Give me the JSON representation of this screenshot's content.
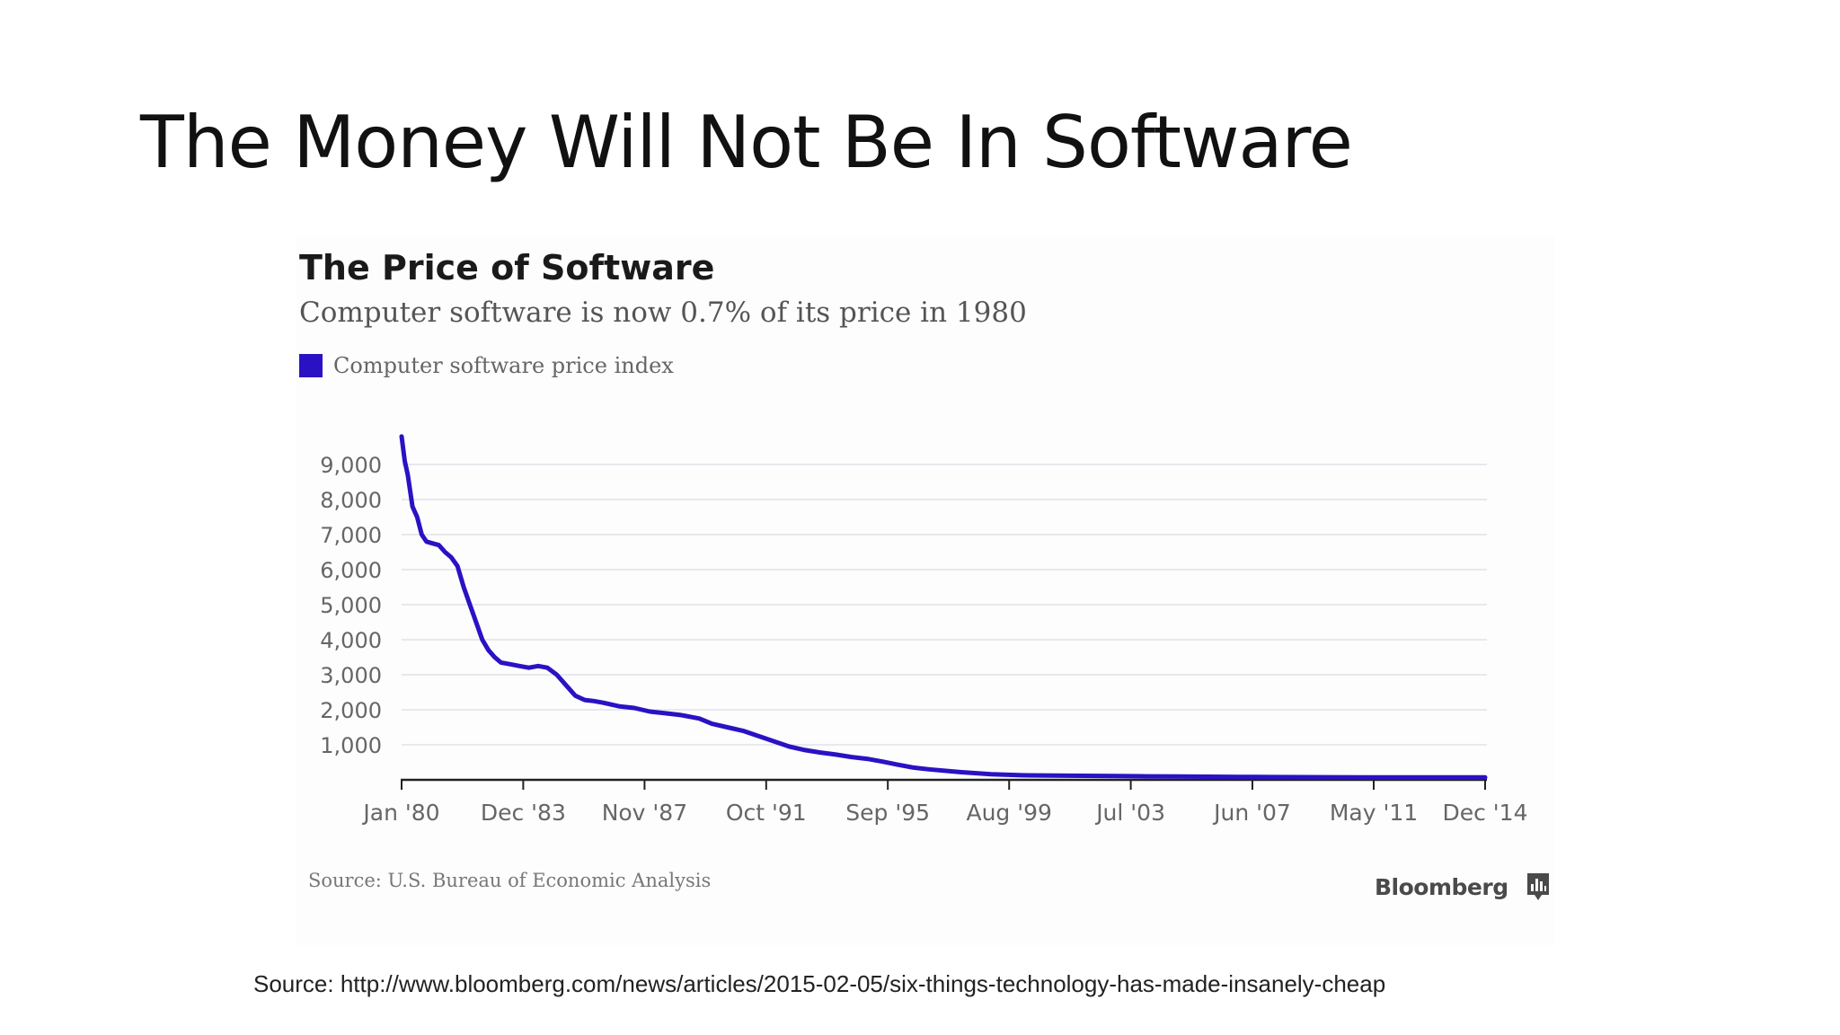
{
  "slide": {
    "title": "The Money Will Not Be In Software",
    "source_text": "Source: http://www.bloomberg.com/news/articles/2015-02-05/six-things-technology-has-made-insanely-cheap"
  },
  "colors": {
    "series": "#2a12c4",
    "grid": "#e2e2ea",
    "axis": "#222222",
    "tick_label": "#666666"
  },
  "chart_data": {
    "type": "line",
    "title": "The Price of Software",
    "subtitle": "Computer software is now 0.7% of its price in 1980",
    "xlabel": "",
    "ylabel": "",
    "legend_label": "Computer software price index",
    "legend_position": "top-left",
    "ylim": [
      0,
      10000
    ],
    "xlim": [
      1980.0,
      2014.92
    ],
    "grid": true,
    "y_ticks": [
      1000,
      2000,
      3000,
      4000,
      5000,
      6000,
      7000,
      8000,
      9000
    ],
    "y_tick_labels": [
      "1,000",
      "2,000",
      "3,000",
      "4,000",
      "5,000",
      "6,000",
      "7,000",
      "8,000",
      "9,000"
    ],
    "x_ticks": [
      1980.0,
      1983.92,
      1987.83,
      1991.75,
      1995.67,
      1999.58,
      2003.5,
      2007.42,
      2011.33,
      2014.92
    ],
    "x_tick_labels": [
      "Jan '80",
      "Dec '83",
      "Nov '87",
      "Oct '91",
      "Sep '95",
      "Aug '99",
      "Jul '03",
      "Jun '07",
      "May '11",
      "Dec '14"
    ],
    "series": [
      {
        "name": "Computer software price index",
        "x": [
          1980.0,
          1980.1,
          1980.2,
          1980.35,
          1980.5,
          1980.65,
          1980.8,
          1981.0,
          1981.2,
          1981.4,
          1981.6,
          1981.8,
          1982.0,
          1982.2,
          1982.4,
          1982.6,
          1982.8,
          1983.0,
          1983.2,
          1983.5,
          1983.8,
          1984.1,
          1984.4,
          1984.7,
          1985.0,
          1985.3,
          1985.6,
          1985.9,
          1986.2,
          1986.5,
          1987.0,
          1987.5,
          1988.0,
          1988.5,
          1989.0,
          1989.3,
          1989.6,
          1990.0,
          1990.5,
          1991.0,
          1991.5,
          1992.0,
          1992.5,
          1993.0,
          1993.5,
          1994.0,
          1994.5,
          1995.0,
          1995.5,
          1996.0,
          1996.5,
          1997.0,
          1998.0,
          1999.0,
          2000.0,
          2001.0,
          2002.0,
          2003.0,
          2004.0,
          2005.0,
          2006.0,
          2007.0,
          2008.0,
          2009.0,
          2010.0,
          2011.0,
          2012.0,
          2013.0,
          2014.0,
          2014.92
        ],
        "values": [
          9800,
          9100,
          8700,
          7800,
          7500,
          7000,
          6800,
          6750,
          6700,
          6500,
          6350,
          6100,
          5500,
          5000,
          4500,
          4000,
          3700,
          3500,
          3350,
          3300,
          3250,
          3200,
          3250,
          3200,
          3000,
          2700,
          2400,
          2280,
          2250,
          2200,
          2100,
          2050,
          1950,
          1900,
          1850,
          1800,
          1750,
          1600,
          1500,
          1400,
          1250,
          1100,
          950,
          850,
          780,
          720,
          650,
          600,
          520,
          430,
          350,
          300,
          220,
          160,
          130,
          120,
          115,
          110,
          100,
          95,
          90,
          85,
          80,
          78,
          75,
          72,
          70,
          68,
          68,
          68
        ]
      }
    ],
    "source": "Source: U.S. Bureau of Economic Analysis",
    "brand": "Bloomberg"
  }
}
